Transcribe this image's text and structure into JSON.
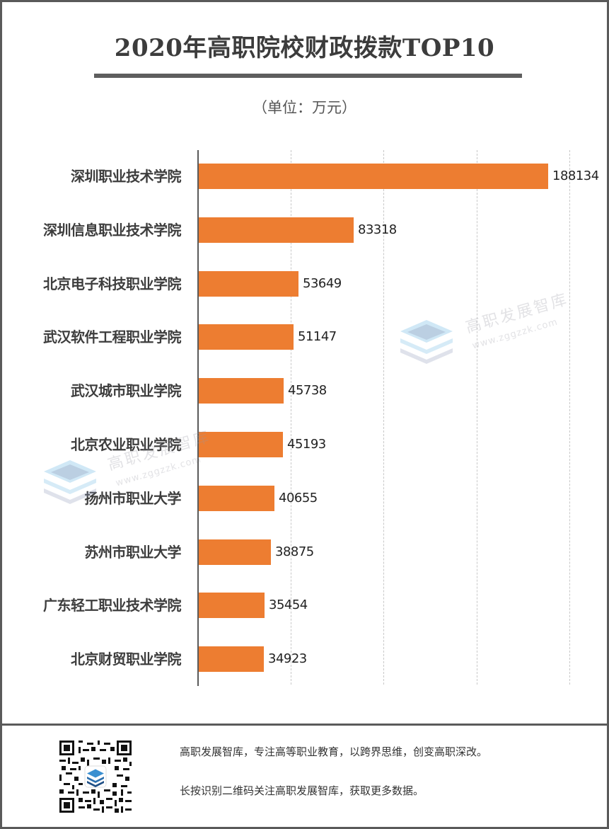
{
  "header": {
    "title": "2020年高职院校财政拨款TOP10",
    "unit": "（单位：万元）"
  },
  "chart_data": {
    "type": "bar",
    "orientation": "horizontal",
    "title": "2020年高职院校财政拨款TOP10",
    "subtitle": "（单位：万元）",
    "xlabel": "",
    "ylabel": "",
    "xlim": [
      0,
      200000
    ],
    "grid": true,
    "gridlines_at": [
      50000,
      100000,
      150000,
      200000
    ],
    "bar_color": "#ed7d31",
    "categories": [
      "深圳职业技术学院",
      "深圳信息职业技术学院",
      "北京电子科技职业学院",
      "武汉软件工程职业学院",
      "武汉城市职业学院",
      "北京农业职业学院",
      "扬州市职业大学",
      "苏州市职业大学",
      "广东轻工职业技术学院",
      "北京财贸职业学院"
    ],
    "values": [
      188134,
      83318,
      53649,
      51147,
      45738,
      45193,
      40655,
      38875,
      35454,
      34923
    ],
    "value_labels": [
      "188134",
      "83318",
      "53649",
      "51147",
      "45738",
      "45193",
      "40655",
      "38875",
      "35454",
      "34923"
    ]
  },
  "watermark": {
    "name": "高职发展智库",
    "url": "www.zggzzk.com",
    "icon": "stacked-layers-icon"
  },
  "footer": {
    "line1": "高职发展智库，专注高等职业教育，以跨界思维，创变高职深改。",
    "line2": "长按识别二维码关注高职发展智库，获取更多数据。",
    "qr_icon": "qr-code-icon"
  },
  "colors": {
    "accent": "#ed7d31",
    "frame": "#5a5a5a",
    "title": "#3c3c3c"
  }
}
